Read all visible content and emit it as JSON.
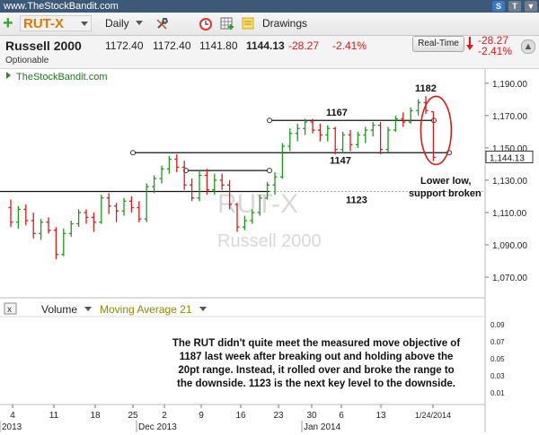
{
  "window": {
    "site": "www.TheStockBandit.com",
    "buttons": [
      "S",
      "T",
      "▼"
    ]
  },
  "toolbar": {
    "symbol": "RUT-X",
    "interval": "Daily",
    "drawings_label": "Drawings",
    "tools": [
      "wrench-icon",
      "clock-icon",
      "grid-icon",
      "note-icon"
    ]
  },
  "quote": {
    "name": "Russell 2000",
    "open": "1172.40",
    "high": "1172.40",
    "low": "1141.80",
    "last": "1144.13",
    "change": "-28.27",
    "change_pct": "-2.41%",
    "sub": "Optionable",
    "realtime_label": "Real-Time",
    "rt_change": "-28.27",
    "rt_change_pct": "-2.41%",
    "down_color": "#e01818",
    "up_color": "#1a9a1a"
  },
  "chart_data": {
    "type": "ohlc",
    "source_label": "TheStockBandit.com",
    "watermark_symbol": "RUT-X",
    "watermark_name": "Russell 2000",
    "last_price_label": "1,144.13",
    "ylim": [
      1060,
      1196
    ],
    "yticks": [
      1070,
      1090,
      1110,
      1130,
      1150,
      1170,
      1190
    ],
    "ytick_labels": [
      "1,070.00",
      "1,090.00",
      "1,110.00",
      "1,130.00",
      "1,150.00",
      "1,170.00",
      "1,190.00"
    ],
    "bars": [
      {
        "o": 1113,
        "h": 1118,
        "l": 1101,
        "c": 1104
      },
      {
        "o": 1104,
        "h": 1114,
        "l": 1100,
        "c": 1112
      },
      {
        "o": 1112,
        "h": 1115,
        "l": 1102,
        "c": 1105
      },
      {
        "o": 1105,
        "h": 1110,
        "l": 1094,
        "c": 1097
      },
      {
        "o": 1097,
        "h": 1106,
        "l": 1093,
        "c": 1104
      },
      {
        "o": 1104,
        "h": 1107,
        "l": 1097,
        "c": 1099
      },
      {
        "o": 1099,
        "h": 1101,
        "l": 1081,
        "c": 1084
      },
      {
        "o": 1084,
        "h": 1100,
        "l": 1083,
        "c": 1097
      },
      {
        "o": 1097,
        "h": 1105,
        "l": 1095,
        "c": 1103
      },
      {
        "o": 1103,
        "h": 1112,
        "l": 1101,
        "c": 1110
      },
      {
        "o": 1110,
        "h": 1112,
        "l": 1103,
        "c": 1107
      },
      {
        "o": 1107,
        "h": 1110,
        "l": 1098,
        "c": 1104
      },
      {
        "o": 1104,
        "h": 1121,
        "l": 1103,
        "c": 1119
      },
      {
        "o": 1119,
        "h": 1122,
        "l": 1109,
        "c": 1114
      },
      {
        "o": 1114,
        "h": 1116,
        "l": 1104,
        "c": 1111
      },
      {
        "o": 1111,
        "h": 1119,
        "l": 1108,
        "c": 1117
      },
      {
        "o": 1117,
        "h": 1120,
        "l": 1110,
        "c": 1113
      },
      {
        "o": 1113,
        "h": 1117,
        "l": 1104,
        "c": 1106
      },
      {
        "o": 1106,
        "h": 1128,
        "l": 1104,
        "c": 1126
      },
      {
        "o": 1126,
        "h": 1133,
        "l": 1122,
        "c": 1131
      },
      {
        "o": 1131,
        "h": 1139,
        "l": 1128,
        "c": 1137
      },
      {
        "o": 1137,
        "h": 1145,
        "l": 1134,
        "c": 1143
      },
      {
        "o": 1143,
        "h": 1146,
        "l": 1135,
        "c": 1138
      },
      {
        "o": 1138,
        "h": 1142,
        "l": 1124,
        "c": 1127
      },
      {
        "o": 1127,
        "h": 1131,
        "l": 1117,
        "c": 1119
      },
      {
        "o": 1119,
        "h": 1136,
        "l": 1117,
        "c": 1133
      },
      {
        "o": 1133,
        "h": 1137,
        "l": 1121,
        "c": 1124
      },
      {
        "o": 1124,
        "h": 1134,
        "l": 1121,
        "c": 1130
      },
      {
        "o": 1130,
        "h": 1134,
        "l": 1124,
        "c": 1127
      },
      {
        "o": 1127,
        "h": 1130,
        "l": 1112,
        "c": 1115
      },
      {
        "o": 1115,
        "h": 1116,
        "l": 1098,
        "c": 1101
      },
      {
        "o": 1101,
        "h": 1108,
        "l": 1099,
        "c": 1105
      },
      {
        "o": 1105,
        "h": 1112,
        "l": 1103,
        "c": 1110
      },
      {
        "o": 1110,
        "h": 1121,
        "l": 1108,
        "c": 1119
      },
      {
        "o": 1119,
        "h": 1129,
        "l": 1118,
        "c": 1127
      },
      {
        "o": 1127,
        "h": 1135,
        "l": 1121,
        "c": 1132
      },
      {
        "o": 1132,
        "h": 1153,
        "l": 1131,
        "c": 1151
      },
      {
        "o": 1151,
        "h": 1162,
        "l": 1148,
        "c": 1159
      },
      {
        "o": 1159,
        "h": 1165,
        "l": 1154,
        "c": 1162
      },
      {
        "o": 1162,
        "h": 1168,
        "l": 1158,
        "c": 1166
      },
      {
        "o": 1166,
        "h": 1168,
        "l": 1159,
        "c": 1161
      },
      {
        "o": 1161,
        "h": 1165,
        "l": 1154,
        "c": 1158
      },
      {
        "o": 1158,
        "h": 1164,
        "l": 1154,
        "c": 1162
      },
      {
        "o": 1162,
        "h": 1163,
        "l": 1146,
        "c": 1149
      },
      {
        "o": 1149,
        "h": 1160,
        "l": 1147,
        "c": 1158
      },
      {
        "o": 1158,
        "h": 1161,
        "l": 1148,
        "c": 1152
      },
      {
        "o": 1152,
        "h": 1160,
        "l": 1150,
        "c": 1158
      },
      {
        "o": 1158,
        "h": 1163,
        "l": 1153,
        "c": 1161
      },
      {
        "o": 1161,
        "h": 1166,
        "l": 1157,
        "c": 1164
      },
      {
        "o": 1164,
        "h": 1166,
        "l": 1146,
        "c": 1149
      },
      {
        "o": 1149,
        "h": 1163,
        "l": 1147,
        "c": 1161
      },
      {
        "o": 1161,
        "h": 1170,
        "l": 1160,
        "c": 1168
      },
      {
        "o": 1168,
        "h": 1172,
        "l": 1163,
        "c": 1166
      },
      {
        "o": 1166,
        "h": 1175,
        "l": 1165,
        "c": 1173
      },
      {
        "o": 1173,
        "h": 1180,
        "l": 1170,
        "c": 1178
      },
      {
        "o": 1178,
        "h": 1182,
        "l": 1171,
        "c": 1173
      },
      {
        "o": 1172.4,
        "h": 1172.4,
        "l": 1141.8,
        "c": 1144.13
      }
    ],
    "levels": [
      {
        "value": 1167,
        "label": "1167"
      },
      {
        "value": 1147,
        "label": "1147"
      },
      {
        "value": 1123,
        "label": "1123"
      },
      {
        "value": 1182,
        "label": "1182"
      }
    ],
    "annotation": [
      "Lower low,",
      "support broken"
    ],
    "xtick_labels": [
      "4",
      "11",
      "18",
      "25",
      "2",
      "9",
      "16",
      "23",
      "30",
      "6",
      "13",
      "1/24/2014"
    ],
    "month_labels": [
      "2013",
      "Dec 2013",
      "Jan 2014"
    ],
    "volume_panel": {
      "label": "Volume",
      "ma_label": "Moving Average 21",
      "yticks": [
        "0.09",
        "0.07",
        "0.05",
        "0.03",
        "0.01"
      ]
    },
    "commentary": [
      "The RUT didn't quite meet the measured move objective of",
      "1187 last week after breaking out and holding above the",
      "20pt range. Instead, it rolled over and broke the range to",
      "the downside. 1123 is the next key level to the downside."
    ],
    "colors": {
      "up": "#1a9a1a",
      "down": "#e01818",
      "line": "#111111",
      "circle": "#e01818"
    }
  }
}
